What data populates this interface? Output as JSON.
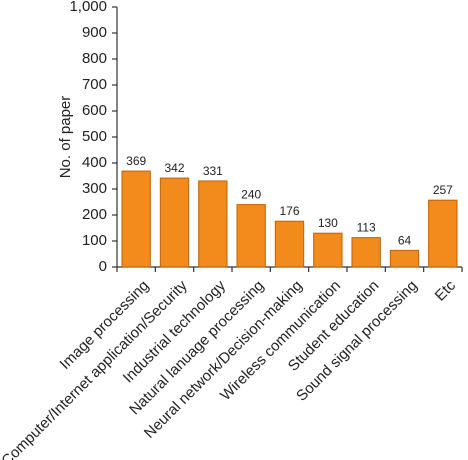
{
  "chart_data": {
    "type": "bar",
    "y_label": "No. of paper",
    "categories": [
      "Image processing",
      "Computer/Internet application/Security",
      "Industrial technology",
      "Natural lanuage processing",
      "Neural network/Decision-making",
      "Wireless communication",
      "Student education",
      "Sound signal processing",
      "Etc"
    ],
    "values": [
      369,
      342,
      331,
      240,
      176,
      130,
      113,
      64,
      257
    ],
    "color": "#f28a1c",
    "ylim": [
      0,
      1000
    ],
    "yticks": [
      0,
      100,
      200,
      300,
      400,
      500,
      600,
      700,
      800,
      900,
      {
        "value": 1000,
        "label": "1,000"
      }
    ]
  }
}
